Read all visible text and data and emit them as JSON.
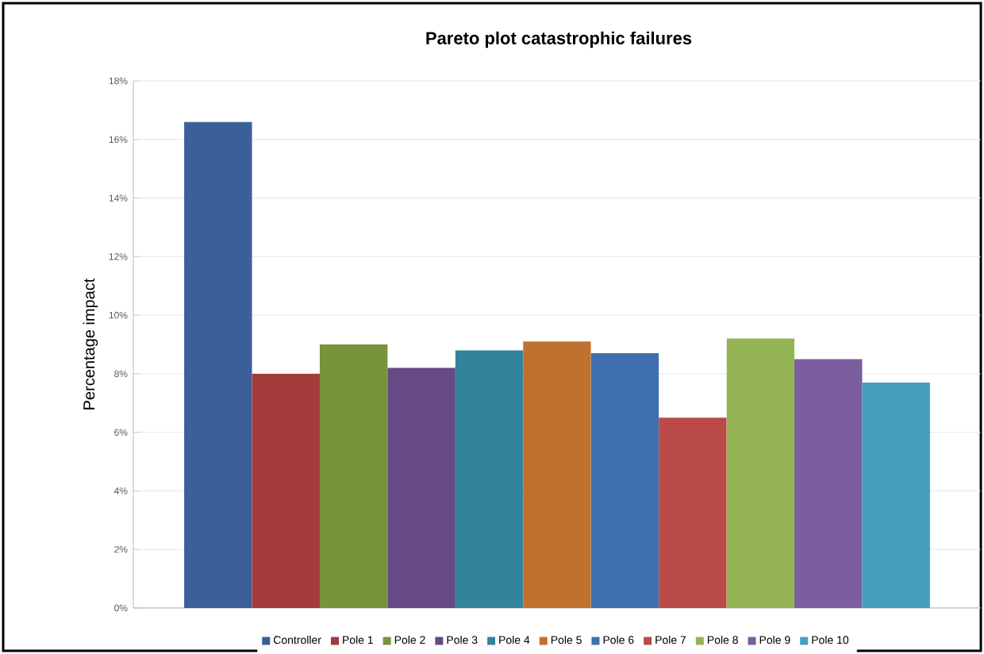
{
  "chart_data": {
    "type": "bar",
    "title": "Pareto plot catastrophic failures",
    "ylabel": "Percentage impact",
    "categories": [
      null
    ],
    "series": [
      {
        "name": "Controller",
        "color": "#3a5f99",
        "values": [
          16.6
        ]
      },
      {
        "name": "Pole 1",
        "color": "#a33b3a",
        "values": [
          8.0
        ]
      },
      {
        "name": "Pole 2",
        "color": "#77933c",
        "values": [
          9.0
        ]
      },
      {
        "name": "Pole 3",
        "color": "#654a85",
        "values": [
          8.2
        ]
      },
      {
        "name": "Pole 4",
        "color": "#31849b",
        "values": [
          8.8
        ]
      },
      {
        "name": "Pole 5",
        "color": "#c0712e",
        "values": [
          9.1
        ]
      },
      {
        "name": "Pole 6",
        "color": "#3f6fb0",
        "values": [
          8.7
        ]
      },
      {
        "name": "Pole 7",
        "color": "#b94a48",
        "values": [
          6.5
        ]
      },
      {
        "name": "Pole 8",
        "color": "#94b454",
        "values": [
          9.2
        ]
      },
      {
        "name": "Pole 9",
        "color": "#7b5ea0",
        "values": [
          8.5
        ]
      },
      {
        "name": "Pole 10",
        "color": "#45a0bb",
        "values": [
          7.7
        ]
      }
    ],
    "ylim": [
      0,
      18
    ],
    "yticks": [
      {
        "value": 0,
        "label": "0%"
      },
      {
        "value": 2,
        "label": "2%"
      },
      {
        "value": 4,
        "label": "4%"
      },
      {
        "value": 6,
        "label": "6%"
      },
      {
        "value": 8,
        "label": "8%"
      },
      {
        "value": 10,
        "label": "10%"
      },
      {
        "value": 12,
        "label": "12%"
      },
      {
        "value": 14,
        "label": "14%"
      },
      {
        "value": 16,
        "label": "16%"
      },
      {
        "value": 18,
        "label": "18%"
      }
    ],
    "grid": "y",
    "legend": "bottom"
  }
}
